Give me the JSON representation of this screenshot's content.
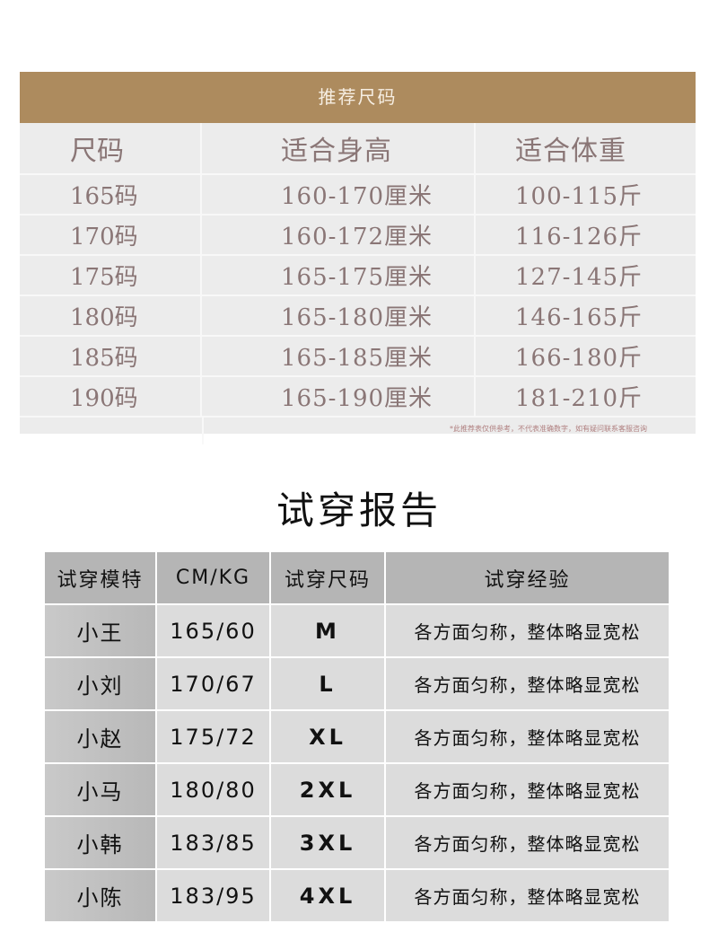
{
  "size_table": {
    "title": "推荐尺码",
    "headers": [
      "尺码",
      "适合身高",
      "适合体重"
    ],
    "rows": [
      [
        "165码",
        "160-170厘米",
        "100-115斤"
      ],
      [
        "170码",
        "160-172厘米",
        "116-126斤"
      ],
      [
        "175码",
        "165-175厘米",
        "127-145斤"
      ],
      [
        "180码",
        "165-180厘米",
        "146-165斤"
      ],
      [
        "185码",
        "165-185厘米",
        "166-180斤"
      ],
      [
        "190码",
        "165-190厘米",
        "181-210斤"
      ]
    ],
    "note": "*此推荐表仅供参考，不代表准确数字，如有疑问联系客服咨询"
  },
  "report": {
    "title": "试穿报告",
    "headers": [
      "试穿模特",
      "CM/KG",
      "试穿尺码",
      "试穿经验"
    ],
    "rows": [
      [
        "小王",
        "165/60",
        "M",
        "各方面匀称，整体略显宽松"
      ],
      [
        "小刘",
        "170/67",
        "L",
        "各方面匀称，整体略显宽松"
      ],
      [
        "小赵",
        "175/72",
        "XL",
        "各方面匀称，整体略显宽松"
      ],
      [
        "小马",
        "180/80",
        "2XL",
        "各方面匀称，整体略显宽松"
      ],
      [
        "小韩",
        "183/85",
        "3XL",
        "各方面匀称，整体略显宽松"
      ],
      [
        "小陈",
        "183/95",
        "4XL",
        "各方面匀称，整体略显宽松"
      ]
    ]
  },
  "colors": {
    "gold": "#ad8b5e",
    "table_bg": "#ececec",
    "report_header": "#b5b5b5",
    "report_cell": "#dcdcdc"
  }
}
